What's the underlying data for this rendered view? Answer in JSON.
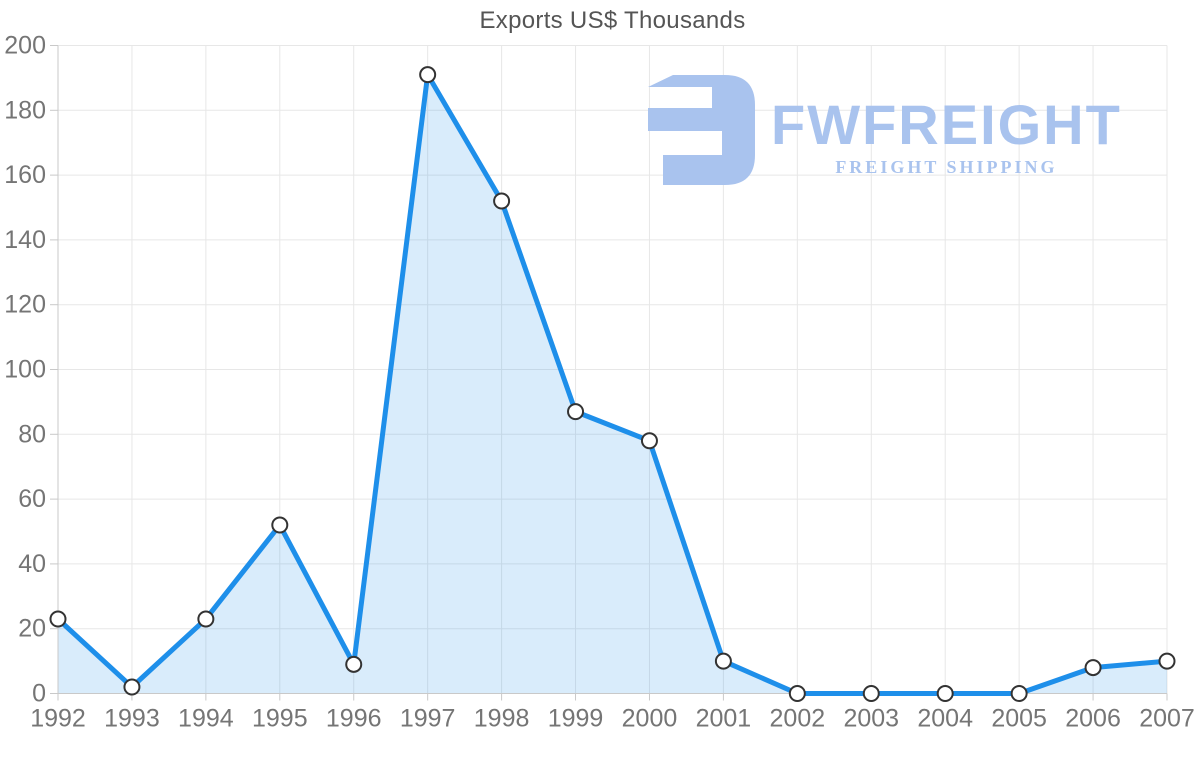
{
  "logo": {
    "name": "FWFREIGHT",
    "subtitle": "FREIGHT SHIPPING",
    "color": "#a9c3ee"
  },
  "chart_data": {
    "type": "area",
    "title": "Exports US$ Thousands",
    "x": [
      1992,
      1993,
      1994,
      1995,
      1996,
      1997,
      1998,
      1999,
      2000,
      2001,
      2002,
      2003,
      2004,
      2005,
      2006,
      2007
    ],
    "series": [
      {
        "name": "Exports US$ Thousands",
        "values": [
          23,
          2,
          23,
          52,
          9,
          191,
          152,
          87,
          78,
          10,
          0,
          0,
          0,
          0,
          8,
          10
        ]
      }
    ],
    "xlabel": "",
    "ylabel": "",
    "ylim": [
      0,
      200
    ],
    "ytick_step": 20,
    "grid": true,
    "legend": false,
    "line_color": "#1e8fea",
    "fill_color": "rgba(30,144,234,0.17)",
    "marker_fill": "#ffffff",
    "marker_stroke": "#333333",
    "grid_color": "#e7e7e7",
    "axis_color": "#c9c9c9",
    "tick_label_color": "#757575",
    "title_color": "#555555"
  }
}
